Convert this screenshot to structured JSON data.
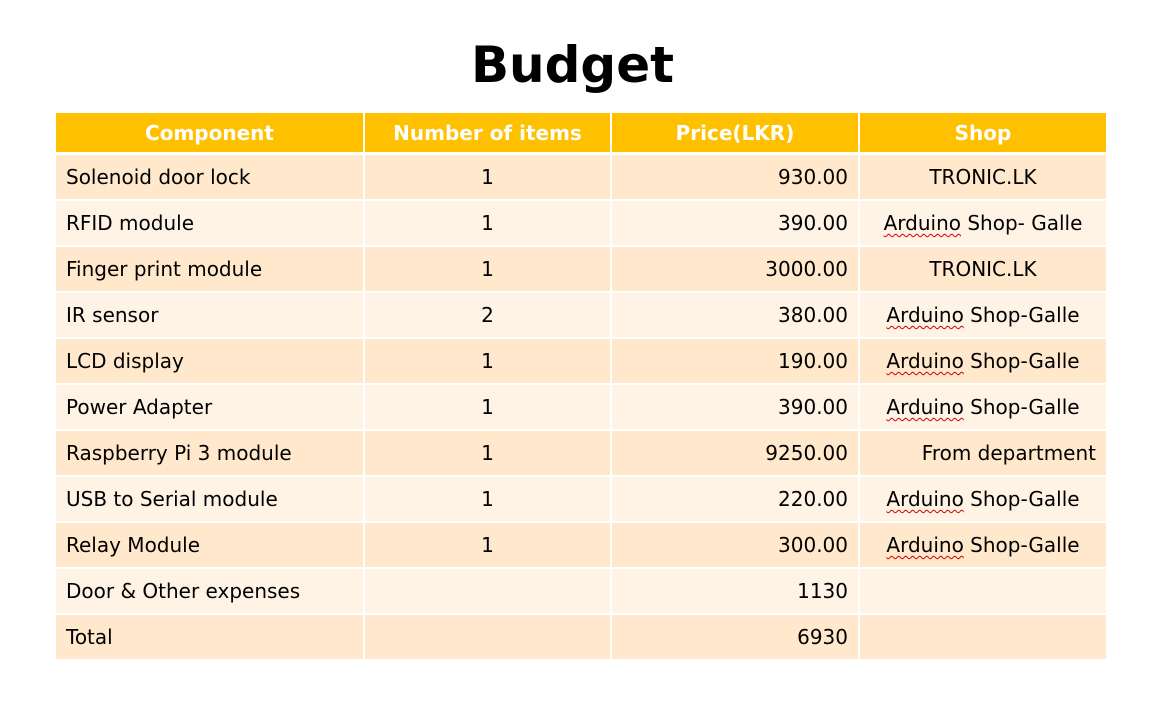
{
  "slide": {
    "title": "Budget"
  },
  "table": {
    "headers": [
      "Component",
      "Number of items",
      "Price(LKR)",
      "Shop"
    ],
    "rows": [
      {
        "component": "Solenoid door lock",
        "qty": "1",
        "price": "930.00",
        "shop_underlined": "",
        "shop_rest": "TRONIC.LK"
      },
      {
        "component": "RFID module",
        "qty": "1",
        "price": "390.00",
        "shop_underlined": "Arduino",
        "shop_rest": " Shop- Galle"
      },
      {
        "component": "Finger print module",
        "qty": "1",
        "price": "3000.00",
        "shop_underlined": "",
        "shop_rest": "TRONIC.LK"
      },
      {
        "component": "IR sensor",
        "qty": "2",
        "price": "380.00",
        "shop_underlined": "Arduino",
        "shop_rest": " Shop-Galle"
      },
      {
        "component": "LCD display",
        "qty": "1",
        "price": "190.00",
        "shop_underlined": "Arduino",
        "shop_rest": " Shop-Galle"
      },
      {
        "component": "Power Adapter",
        "qty": "1",
        "price": "390.00",
        "shop_underlined": "Arduino",
        "shop_rest": " Shop-Galle"
      },
      {
        "component": "Raspberry Pi 3 module",
        "qty": "1",
        "price": "9250.00",
        "shop_underlined": "",
        "shop_rest": "From department"
      },
      {
        "component": "USB to Serial module",
        "qty": "1",
        "price": "220.00",
        "shop_underlined": "Arduino",
        "shop_rest": " Shop-Galle"
      },
      {
        "component": "Relay Module",
        "qty": "1",
        "price": "300.00",
        "shop_underlined": "Arduino",
        "shop_rest": " Shop-Galle"
      },
      {
        "component": "Door & Other expenses",
        "qty": "",
        "price": "1130",
        "shop_underlined": "",
        "shop_rest": ""
      },
      {
        "component": "Total",
        "qty": "",
        "price": "6930",
        "shop_underlined": "",
        "shop_rest": ""
      }
    ]
  },
  "colors": {
    "header_bg": "#ffc000",
    "row_odd": "#ffe8cb",
    "row_even": "#fff3e6",
    "spellcheck": "#d00000"
  }
}
